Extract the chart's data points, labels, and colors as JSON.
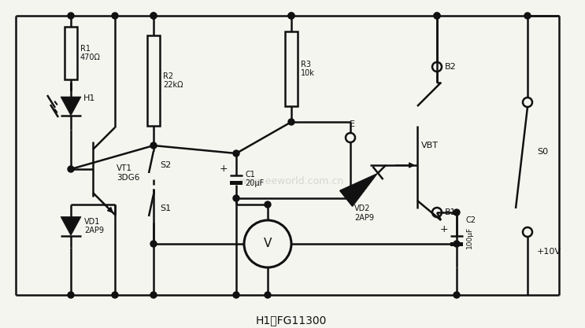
{
  "bg_color": "#f5f5f0",
  "line_color": "#111111",
  "caption": "H1；FG11300",
  "watermark": "www.eeworld.com.cn",
  "lw": 1.8,
  "fig_w": 7.43,
  "fig_h": 4.17,
  "dpi": 100,
  "labels": {
    "R1": "R1\n470Ω",
    "R2": "R2\n22kΩ",
    "R3": "R3\n10k",
    "H1": "H1",
    "VT1": "VT1\n3DG6",
    "VD1": "VD1\n2AP9",
    "S2": "S2",
    "S1": "S1",
    "C1": "C1\n20μF",
    "VD2": "VD2\n2AP9",
    "VBT": "VBT",
    "B2": "B2",
    "B1": "B1",
    "C2": "C2",
    "C2_val": "100μF",
    "V_meter": "V",
    "S0": "S0",
    "plus10V": "+10V",
    "E_label": "E"
  }
}
